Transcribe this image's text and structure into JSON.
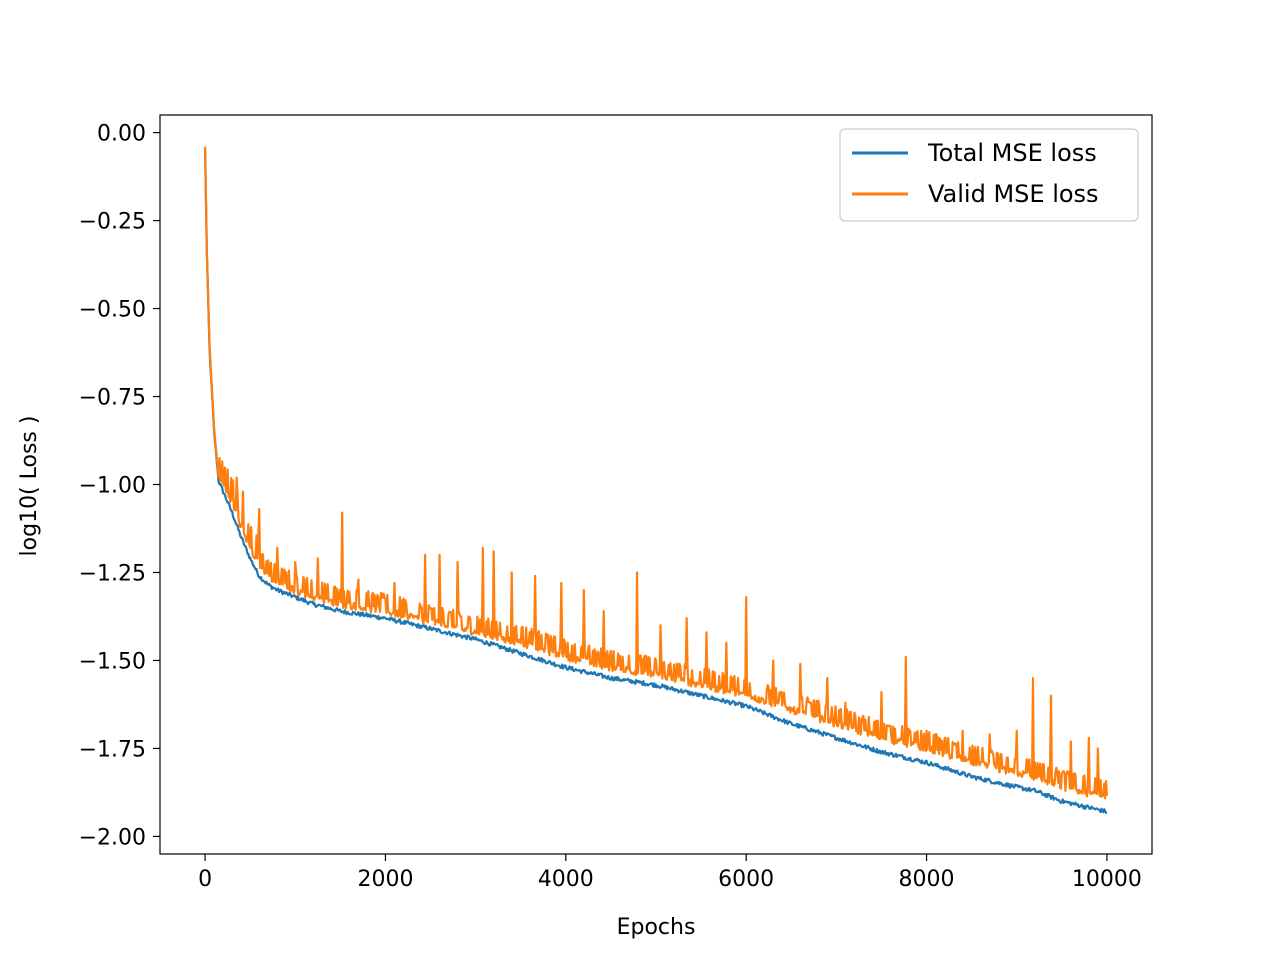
{
  "chart_data": {
    "type": "line",
    "title": "",
    "xlabel": "Epochs",
    "ylabel": "log10( Loss )",
    "xlim": [
      -500,
      10500
    ],
    "ylim": [
      -2.05,
      0.05
    ],
    "x_ticks": [
      0,
      2000,
      4000,
      6000,
      8000,
      10000
    ],
    "x_tick_labels": [
      "0",
      "2000",
      "4000",
      "6000",
      "8000",
      "10000"
    ],
    "y_ticks": [
      0.0,
      -0.25,
      -0.5,
      -0.75,
      -1.0,
      -1.25,
      -1.5,
      -1.75,
      -2.0
    ],
    "y_tick_labels": [
      "0.00",
      "−0.25",
      "−0.50",
      "−0.75",
      "−1.00",
      "−1.25",
      "−1.50",
      "−1.75",
      "−2.00"
    ],
    "grid": false,
    "legend_position": "top-right",
    "series": [
      {
        "name": "Total MSE loss",
        "color": "#1f77b4",
        "x": [
          0,
          20,
          50,
          100,
          150,
          200,
          300,
          400,
          500,
          600,
          700,
          800,
          1000,
          1200,
          1500,
          2000,
          2500,
          3000,
          3500,
          4000,
          4500,
          5000,
          5500,
          6000,
          6500,
          7000,
          7500,
          8000,
          8500,
          9000,
          9200,
          9500,
          10000
        ],
        "values": [
          -0.05,
          -0.35,
          -0.62,
          -0.85,
          -0.99,
          -1.02,
          -1.08,
          -1.15,
          -1.21,
          -1.26,
          -1.285,
          -1.3,
          -1.32,
          -1.34,
          -1.36,
          -1.38,
          -1.41,
          -1.44,
          -1.48,
          -1.52,
          -1.55,
          -1.57,
          -1.6,
          -1.63,
          -1.68,
          -1.72,
          -1.76,
          -1.79,
          -1.83,
          -1.86,
          -1.87,
          -1.9,
          -1.93
        ]
      },
      {
        "name": "Valid MSE loss",
        "color": "#ff7f0e",
        "x": [
          0,
          20,
          50,
          100,
          150,
          200,
          300,
          400,
          500,
          600,
          700,
          800,
          1000,
          1200,
          1500,
          2000,
          2500,
          3000,
          3500,
          4000,
          4500,
          5000,
          5500,
          6000,
          6500,
          7000,
          7500,
          8000,
          8500,
          9000,
          9200,
          9500,
          10000
        ],
        "values": [
          -0.04,
          -0.34,
          -0.61,
          -0.84,
          -0.98,
          -1.0,
          -1.05,
          -1.12,
          -1.18,
          -1.23,
          -1.26,
          -1.28,
          -1.3,
          -1.32,
          -1.34,
          -1.36,
          -1.39,
          -1.42,
          -1.45,
          -1.49,
          -1.52,
          -1.54,
          -1.57,
          -1.6,
          -1.64,
          -1.68,
          -1.72,
          -1.75,
          -1.79,
          -1.82,
          -1.83,
          -1.86,
          -1.89
        ],
        "spikes": [
          {
            "x": 350,
            "y": -0.98
          },
          {
            "x": 420,
            "y": -1.02
          },
          {
            "x": 600,
            "y": -1.07
          },
          {
            "x": 800,
            "y": -1.18
          },
          {
            "x": 1000,
            "y": -1.22
          },
          {
            "x": 1250,
            "y": -1.21
          },
          {
            "x": 1520,
            "y": -1.08
          },
          {
            "x": 1700,
            "y": -1.27
          },
          {
            "x": 2100,
            "y": -1.28
          },
          {
            "x": 2440,
            "y": -1.2
          },
          {
            "x": 2600,
            "y": -1.2
          },
          {
            "x": 2800,
            "y": -1.22
          },
          {
            "x": 3080,
            "y": -1.18
          },
          {
            "x": 3200,
            "y": -1.19
          },
          {
            "x": 3400,
            "y": -1.25
          },
          {
            "x": 3660,
            "y": -1.26
          },
          {
            "x": 3950,
            "y": -1.28
          },
          {
            "x": 4200,
            "y": -1.3
          },
          {
            "x": 4420,
            "y": -1.36
          },
          {
            "x": 4790,
            "y": -1.25
          },
          {
            "x": 5050,
            "y": -1.4
          },
          {
            "x": 5340,
            "y": -1.38
          },
          {
            "x": 5560,
            "y": -1.42
          },
          {
            "x": 5780,
            "y": -1.45
          },
          {
            "x": 6000,
            "y": -1.32
          },
          {
            "x": 6300,
            "y": -1.5
          },
          {
            "x": 6600,
            "y": -1.51
          },
          {
            "x": 6900,
            "y": -1.55
          },
          {
            "x": 7100,
            "y": -1.62
          },
          {
            "x": 7500,
            "y": -1.59
          },
          {
            "x": 7770,
            "y": -1.49
          },
          {
            "x": 8000,
            "y": -1.7
          },
          {
            "x": 8400,
            "y": -1.7
          },
          {
            "x": 8700,
            "y": -1.71
          },
          {
            "x": 9000,
            "y": -1.7
          },
          {
            "x": 9180,
            "y": -1.55
          },
          {
            "x": 9380,
            "y": -1.6
          },
          {
            "x": 9600,
            "y": -1.73
          },
          {
            "x": 9800,
            "y": -1.72
          },
          {
            "x": 9900,
            "y": -1.75
          }
        ]
      }
    ]
  }
}
